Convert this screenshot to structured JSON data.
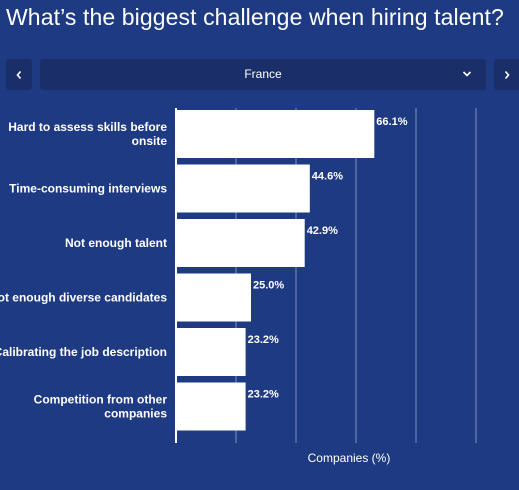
{
  "page": {
    "title": "What’s the biggest challenge when hiring talent?"
  },
  "filter": {
    "selected": "France",
    "prev_icon": "chevron-left-icon",
    "next_icon": "chevron-right-icon",
    "dropdown_icon": "chevron-down-icon"
  },
  "colors": {
    "background": "#1e3a82",
    "control": "#1a2f6a",
    "bar": "#ffffff",
    "grid": "#7f90bc"
  },
  "chart_data": {
    "type": "bar",
    "orientation": "horizontal",
    "categories": [
      [
        "Hard to assess skills before",
        "onsite"
      ],
      [
        "Time-consuming interviews"
      ],
      [
        "Not enough talent"
      ],
      [
        "Not enough diverse candidates"
      ],
      [
        "Calibrating the job description"
      ],
      [
        "Competition from other",
        "companies"
      ]
    ],
    "values": [
      66.1,
      44.6,
      42.9,
      25.0,
      23.2,
      23.2
    ],
    "value_labels": [
      "66.1%",
      "44.6%",
      "42.9%",
      "25.0%",
      "23.2%",
      "23.2%"
    ],
    "xlabel": "Companies (%)",
    "xlim": [
      0,
      100
    ],
    "grid": true,
    "legend": "none"
  }
}
